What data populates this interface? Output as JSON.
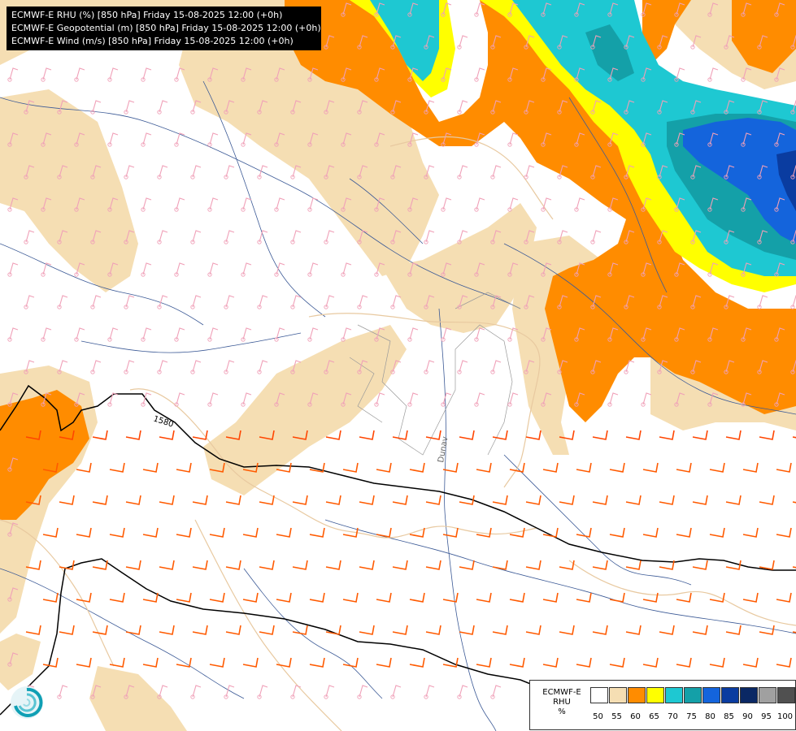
{
  "header": {
    "line1": "ECMWF-E RHU (%) [850 hPa] Friday 15-08-2025 12:00 (+0h)",
    "line2": "ECMWF-E Geopotential (m) [850 hPa] Friday 15-08-2025 12:00 (+0h)",
    "line3": "ECMWF-E Wind (m/s) [850 hPa] Friday 15-08-2025 12:00 (+0h)"
  },
  "contours": {
    "label_1580": "1580"
  },
  "river_label": "Dunav",
  "legend": {
    "title_line1": "ECMWF-E",
    "title_line2": "RHU",
    "title_line3": "%",
    "levels": [
      {
        "value": "50",
        "color": "#ffffff"
      },
      {
        "value": "55",
        "color": "#f5deb3"
      },
      {
        "value": "60",
        "color": "#ff8c00"
      },
      {
        "value": "65",
        "color": "#ffff00"
      },
      {
        "value": "70",
        "color": "#1ec8d2"
      },
      {
        "value": "75",
        "color": "#14a0a8"
      },
      {
        "value": "80",
        "color": "#1464dc"
      },
      {
        "value": "85",
        "color": "#0a3ca0"
      },
      {
        "value": "90",
        "color": "#0a2864"
      },
      {
        "value": "95",
        "color": "#a0a0a0"
      },
      {
        "value": "100",
        "color": "#505050"
      }
    ]
  },
  "logo": {
    "icon": "ecmwf-swirl-logo-icon"
  }
}
